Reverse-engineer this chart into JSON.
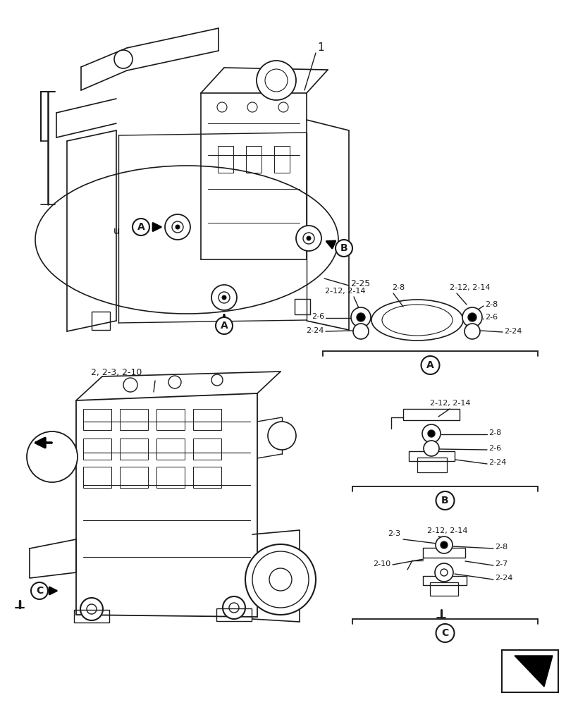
{
  "background_color": "#ffffff",
  "figsize": [
    8.04,
    10.0
  ],
  "dpi": 100,
  "line_color": "#1a1a1a",
  "text_color": "#1a1a1a",
  "label_1": "1",
  "label_225": "2-25",
  "label_engine": "2, 2-3, 2-10",
  "section_A_labels_left": [
    "2-12, 2-14",
    "2-8",
    "2-6",
    "2-24"
  ],
  "section_A_labels_right": [
    "2-12, 2-14",
    "2-8",
    "2-6",
    "2-24"
  ],
  "section_B_labels": [
    "2-12, 2-14",
    "2-8",
    "2-6",
    "2-24"
  ],
  "section_C_labels": [
    "2-3",
    "2-12, 2-14",
    "2-8",
    "2-10",
    "2-7",
    "2-24"
  ],
  "bracket_labels": [
    "A",
    "B",
    "C"
  ]
}
